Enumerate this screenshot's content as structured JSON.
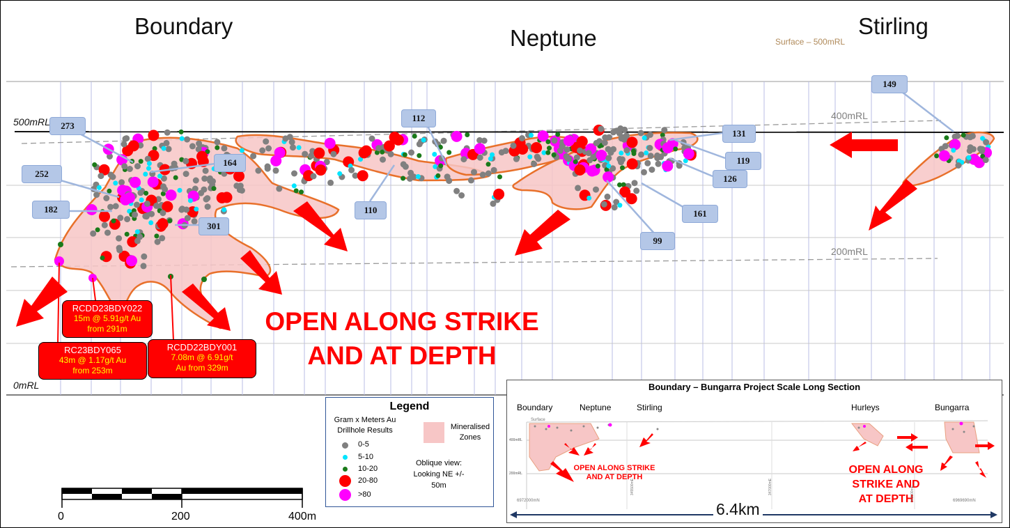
{
  "headers": {
    "boundary": "Boundary",
    "neptune": "Neptune",
    "stirling": "Stirling",
    "surface": "Surface – 500mRL"
  },
  "rl_labels": {
    "r500": "500mRL",
    "r400": "400mRL",
    "r200": "200mRL",
    "r0": "0mRL"
  },
  "callouts": [
    "273",
    "252",
    "182",
    "164",
    "301",
    "112",
    "110",
    "131",
    "119",
    "126",
    "161",
    "99",
    "149"
  ],
  "drill_results": [
    {
      "hole": "RCDD23BDY022",
      "line1": "15m @ 5.91g/t Au",
      "line2": "from 291m"
    },
    {
      "hole": "RC23BDY065",
      "line1": "43m @ 1.17g/t Au",
      "line2": "from 253m"
    },
    {
      "hole": "RCDD22BDY001",
      "line1": "7.08m @ 6.91g/t",
      "line2": "Au from 329m"
    }
  ],
  "open_text": {
    "line1": "OPEN ALONG STRIKE",
    "line2": "AND AT DEPTH"
  },
  "legend": {
    "title": "Legend",
    "subtitle": "Gram x Meters Au Drillhole Results",
    "items": [
      {
        "label": "0-5",
        "color": "#808080"
      },
      {
        "label": "5-10",
        "color": "#00e5ff"
      },
      {
        "label": "10-20",
        "color": "#1a7a1a"
      },
      {
        "label": "20-80",
        "color": "#ff0000"
      },
      {
        "label": ">80",
        "color": "#ff00ff"
      }
    ],
    "zones_label": "Mineralised Zones",
    "zones_color": "#f7c6c6",
    "view_note": "Oblique view: Looking NE +/- 50m"
  },
  "scale_bar": {
    "labels": [
      "0",
      "200",
      "400m"
    ]
  },
  "inset": {
    "title": "Boundary – Bungarra Project Scale Long Section",
    "deposits": [
      "Boundary",
      "Neptune",
      "Stirling",
      "Hurleys",
      "Bungarra"
    ],
    "open_left": [
      "OPEN ALONG STRIKE",
      "AND AT DEPTH"
    ],
    "open_right": [
      "OPEN ALONG",
      "STRIKE AND",
      "AT DEPTH"
    ],
    "distance": "6.4km",
    "surface_label": "Surface",
    "rl_labels": [
      "400mRL",
      "200mRL"
    ],
    "northings": [
      "6972000mN",
      "6969690mN"
    ],
    "eastings": [
      "345500mE",
      "347000mE",
      "348500mE"
    ]
  },
  "colors": {
    "zone_fill": "#f7c6c6",
    "zone_edge": "#e8702a",
    "arrow": "#ff0000",
    "callout": "#b4c7e7",
    "grid": "#b9bde6"
  }
}
